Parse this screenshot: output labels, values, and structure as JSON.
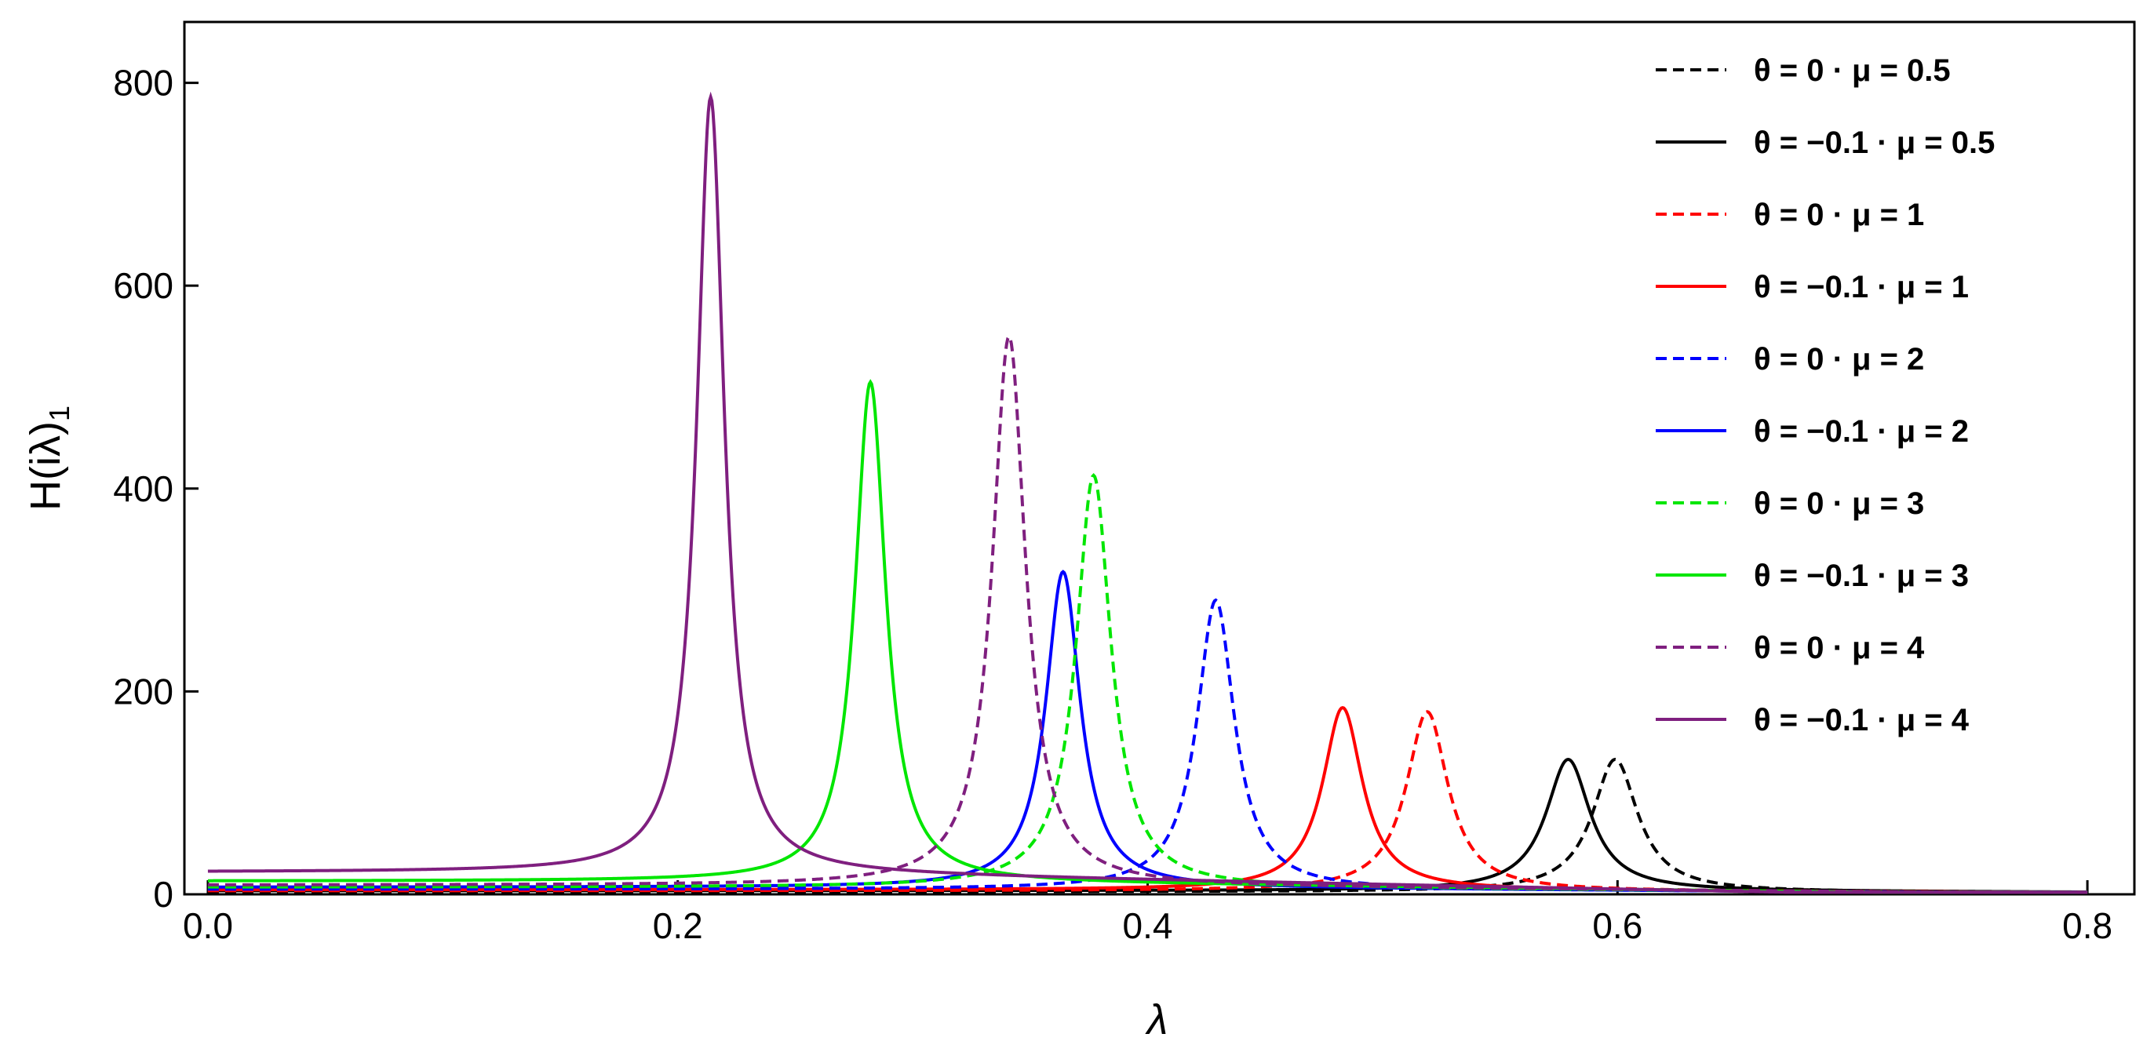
{
  "chart_data": {
    "type": "line",
    "title": "",
    "xlabel": "λ",
    "ylabel_main": "H(iλ)",
    "ylabel_sub": "1",
    "xlim": [
      -0.01,
      0.82
    ],
    "ylim": [
      0,
      860
    ],
    "x_ticks": [
      {
        "value": 0.0,
        "label": "0.0"
      },
      {
        "value": 0.2,
        "label": "0.2"
      },
      {
        "value": 0.4,
        "label": "0.4"
      },
      {
        "value": 0.6,
        "label": "0.6"
      },
      {
        "value": 0.8,
        "label": "0.8"
      }
    ],
    "y_ticks": [
      {
        "value": 0,
        "label": "0"
      },
      {
        "value": 200,
        "label": "200"
      },
      {
        "value": 400,
        "label": "400"
      },
      {
        "value": 600,
        "label": "600"
      },
      {
        "value": 800,
        "label": "800"
      }
    ],
    "legend_position": "top-right",
    "grid": false,
    "series": [
      {
        "name": "θ = 0 · μ = 0.5",
        "color": "#000000",
        "dash": true,
        "peak_x": 0.599,
        "peak_y": 133,
        "base_y": 2.5
      },
      {
        "name": "θ = −0.1 · μ = 0.5",
        "color": "#000000",
        "dash": false,
        "peak_x": 0.579,
        "peak_y": 133,
        "base_y": 3.5
      },
      {
        "name": "θ = 0 · μ = 1",
        "color": "#ff0000",
        "dash": true,
        "peak_x": 0.519,
        "peak_y": 180,
        "base_y": 3.5
      },
      {
        "name": "θ = −0.1 · μ = 1",
        "color": "#ff0000",
        "dash": false,
        "peak_x": 0.483,
        "peak_y": 184,
        "base_y": 4.5
      },
      {
        "name": "θ = 0 · μ = 2",
        "color": "#0000ff",
        "dash": true,
        "peak_x": 0.429,
        "peak_y": 290,
        "base_y": 5
      },
      {
        "name": "θ = −0.1 · μ = 2",
        "color": "#0000ff",
        "dash": false,
        "peak_x": 0.364,
        "peak_y": 318,
        "base_y": 7
      },
      {
        "name": "θ = 0 · μ = 3",
        "color": "#00e600",
        "dash": true,
        "peak_x": 0.377,
        "peak_y": 413,
        "base_y": 7
      },
      {
        "name": "θ = −0.1 · μ = 3",
        "color": "#00e600",
        "dash": false,
        "peak_x": 0.282,
        "peak_y": 505,
        "base_y": 13
      },
      {
        "name": "θ = 0 · μ = 4",
        "color": "#7f1f7f",
        "dash": true,
        "peak_x": 0.341,
        "peak_y": 550,
        "base_y": 9
      },
      {
        "name": "θ = −0.1 · μ = 4",
        "color": "#7f1f7f",
        "dash": false,
        "peak_x": 0.214,
        "peak_y": 786,
        "base_y": 22
      }
    ]
  }
}
